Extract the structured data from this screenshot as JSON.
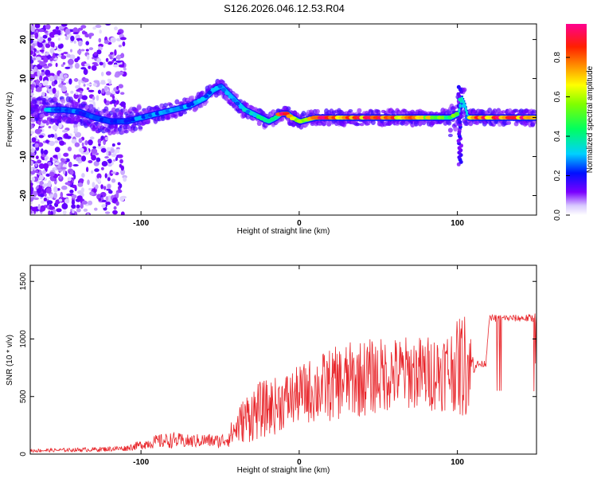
{
  "title": "S126.2026.046.12.53.R04",
  "chart_data": [
    {
      "type": "heatmap",
      "xlabel": "Height of straight line (km)",
      "ylabel": "Frequency (Hz)",
      "xlim": [
        -170,
        150
      ],
      "ylim": [
        -25,
        24
      ],
      "x_ticks": [
        -100,
        0,
        100
      ],
      "y_ticks": [
        -20,
        -10,
        0,
        10,
        20
      ],
      "ridge": {
        "x": [
          -160,
          -150,
          -140,
          -130,
          -120,
          -110,
          -100,
          -90,
          -80,
          -70,
          -60,
          -55,
          -50,
          -45,
          -40,
          -35,
          -30,
          -25,
          -20,
          -15,
          -12,
          -8,
          -5,
          0,
          10,
          20,
          30,
          40,
          50,
          60,
          70,
          80,
          90,
          95,
          100,
          102,
          104,
          106,
          108,
          110,
          120,
          130,
          140,
          150
        ],
        "freq": [
          2,
          2,
          1.5,
          0,
          -1,
          -1,
          0,
          1,
          2,
          3,
          5,
          7,
          8,
          6,
          4,
          2,
          1,
          0,
          -1,
          0,
          1,
          1,
          0,
          -1,
          0,
          0,
          0,
          0,
          0,
          0,
          0,
          0,
          0,
          0,
          1,
          5,
          3,
          0,
          0,
          0,
          0,
          0,
          0,
          0
        ],
        "amplitude": [
          0.3,
          0.3,
          0.25,
          0.25,
          0.25,
          0.25,
          0.3,
          0.3,
          0.3,
          0.3,
          0.3,
          0.3,
          0.3,
          0.3,
          0.3,
          0.35,
          0.35,
          0.4,
          0.45,
          0.5,
          0.9,
          0.9,
          0.6,
          0.6,
          0.9,
          0.9,
          0.9,
          0.85,
          0.9,
          0.85,
          0.8,
          0.7,
          0.6,
          0.5,
          0.6,
          0.5,
          0.4,
          0.3,
          0.9,
          0.9,
          0.9,
          0.9,
          0.9,
          0.9
        ]
      },
      "colorbar": {
        "label": "Normalized spectral amplitude",
        "range": [
          0,
          0.97
        ],
        "ticks": [
          0.0,
          0.2,
          0.4,
          0.6,
          0.8
        ]
      },
      "grid": false
    },
    {
      "type": "line",
      "xlabel": "Height of straight line (km)",
      "ylabel": "SNR (10 * v/v)",
      "xlim": [
        -170,
        150
      ],
      "ylim": [
        0,
        1640
      ],
      "x_ticks": [
        -100,
        0,
        100
      ],
      "y_ticks": [
        0,
        500,
        1000,
        1500
      ],
      "series": [
        {
          "color": "#e8262b",
          "envelope": {
            "x": [
              -170,
              -150,
              -130,
              -110,
              -100,
              -90,
              -80,
              -70,
              -60,
              -50,
              -45,
              -40,
              -35,
              -30,
              -25,
              -20,
              -15,
              -10,
              -5,
              0,
              10,
              20,
              30,
              40,
              50,
              60,
              70,
              80,
              90,
              95,
              100,
              103,
              105,
              107,
              108,
              110,
              112,
              115,
              118,
              120,
              122,
              130,
              140,
              148,
              150
            ],
            "base": [
              30,
              35,
              40,
              50,
              80,
              110,
              120,
              110,
              120,
              110,
              140,
              220,
              300,
              350,
              380,
              400,
              420,
              460,
              480,
              520,
              560,
              600,
              640,
              660,
              680,
              700,
              710,
              700,
              720,
              740,
              760,
              780,
              780,
              770,
              770,
              780,
              780,
              780,
              790,
              1170,
              1180,
              1180,
              1180,
              1180,
              1160
            ],
            "amp": [
              15,
              15,
              20,
              25,
              40,
              60,
              70,
              60,
              60,
              60,
              80,
              150,
              200,
              250,
              250,
              250,
              250,
              250,
              250,
              250,
              300,
              320,
              330,
              340,
              330,
              320,
              320,
              330,
              350,
              360,
              400,
              500,
              450,
              400,
              350,
              100,
              40,
              30,
              30,
              30,
              30,
              30,
              30,
              40,
              80
            ]
          }
        }
      ],
      "grid": false
    }
  ]
}
